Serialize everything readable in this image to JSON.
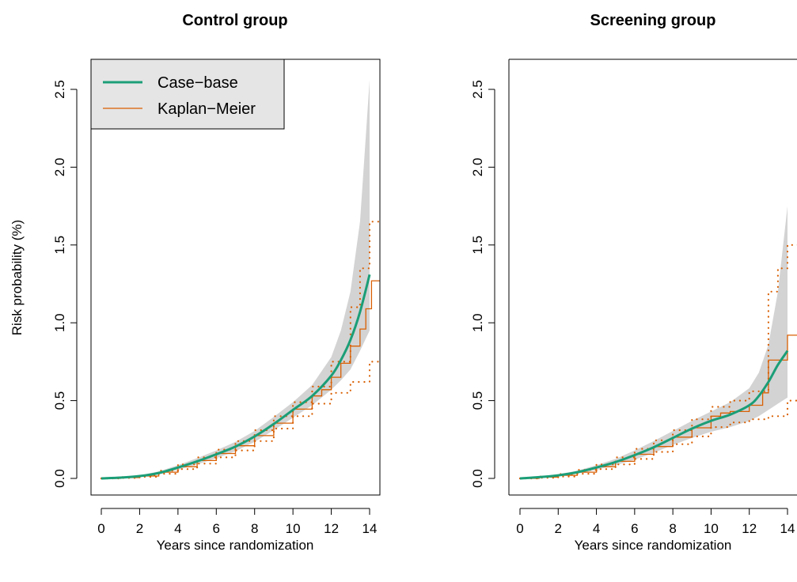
{
  "colors": {
    "case_base": "#1b9e77",
    "kaplan_meier": "#d95f02",
    "band": "#d3d3d3",
    "legend_bg": "#e5e5e5"
  },
  "chart_data": [
    {
      "type": "line",
      "title": "Control group",
      "xlabel": "Years since randomization",
      "ylabel": "Risk probability (%)",
      "xlim": [
        0,
        14
      ],
      "ylim": [
        0,
        2.5
      ],
      "x_ticks": [
        "0",
        "2",
        "4",
        "6",
        "8",
        "10",
        "12",
        "14"
      ],
      "y_ticks": [
        "0.0",
        "0.5",
        "1.0",
        "1.5",
        "2.0",
        "2.5"
      ],
      "legend": {
        "placement": "top-left",
        "entries": [
          {
            "label": "Case−base",
            "series": "case_base"
          },
          {
            "label": "Kaplan−Meier",
            "series": "kaplan_meier"
          }
        ]
      },
      "series": {
        "case_base": {
          "name": "Case−base",
          "x": [
            0,
            1,
            2,
            3,
            4,
            5,
            6,
            7,
            8,
            9,
            10,
            11,
            12,
            12.5,
            13,
            13.5,
            14
          ],
          "y": [
            0,
            0.005,
            0.015,
            0.035,
            0.07,
            0.11,
            0.155,
            0.205,
            0.27,
            0.35,
            0.44,
            0.53,
            0.66,
            0.76,
            0.89,
            1.07,
            1.31
          ]
        },
        "ci_band": {
          "x": [
            0,
            1,
            2,
            3,
            4,
            5,
            6,
            7,
            8,
            9,
            10,
            11,
            12,
            12.5,
            13,
            13.5,
            14
          ],
          "lower": [
            0,
            0.003,
            0.01,
            0.025,
            0.055,
            0.09,
            0.13,
            0.175,
            0.235,
            0.31,
            0.39,
            0.47,
            0.57,
            0.63,
            0.7,
            0.82,
            0.95
          ],
          "upper": [
            0,
            0.008,
            0.02,
            0.045,
            0.085,
            0.13,
            0.18,
            0.235,
            0.305,
            0.395,
            0.49,
            0.6,
            0.78,
            0.95,
            1.2,
            1.65,
            2.56
          ]
        },
        "kaplan_meier": {
          "name": "Kaplan−Meier",
          "x": [
            0,
            1,
            2,
            3,
            4,
            5,
            6,
            7,
            8,
            9,
            10,
            11,
            11.5,
            12,
            12.5,
            13,
            13.5,
            13.8,
            14.1,
            14.6
          ],
          "y": [
            0,
            0.005,
            0.015,
            0.04,
            0.075,
            0.115,
            0.16,
            0.21,
            0.275,
            0.355,
            0.445,
            0.53,
            0.57,
            0.65,
            0.74,
            0.85,
            0.96,
            1.09,
            1.27,
            1.27
          ]
        },
        "km_lower": {
          "x": [
            0,
            1,
            2,
            3,
            4,
            5,
            6,
            7,
            8,
            9,
            10,
            11,
            12,
            13,
            14,
            14.6
          ],
          "y": [
            0,
            0.003,
            0.01,
            0.03,
            0.06,
            0.095,
            0.135,
            0.18,
            0.24,
            0.32,
            0.4,
            0.48,
            0.55,
            0.62,
            0.75,
            0.83
          ]
        },
        "km_upper": {
          "x": [
            0,
            1,
            2,
            3,
            4,
            5,
            6,
            7,
            8,
            9,
            10,
            11,
            12,
            13,
            13.5,
            14,
            14.6
          ],
          "y": [
            0,
            0.008,
            0.02,
            0.05,
            0.09,
            0.135,
            0.185,
            0.24,
            0.31,
            0.4,
            0.49,
            0.59,
            0.75,
            1.1,
            1.35,
            1.65,
            1.94
          ]
        }
      }
    },
    {
      "type": "line",
      "title": "Screening group",
      "xlabel": "Years since randomization",
      "ylabel": "",
      "xlim": [
        0,
        14
      ],
      "ylim": [
        0,
        2.5
      ],
      "x_ticks": [
        "0",
        "2",
        "4",
        "6",
        "8",
        "10",
        "12",
        "14"
      ],
      "y_ticks": [
        "0.0",
        "0.5",
        "1.0",
        "1.5",
        "2.0",
        "2.5"
      ],
      "series": {
        "case_base": {
          "name": "Case−base",
          "x": [
            0,
            1,
            2,
            3,
            4,
            5,
            6,
            7,
            8,
            9,
            10,
            11,
            12,
            12.5,
            13,
            13.5,
            14
          ],
          "y": [
            0,
            0.008,
            0.02,
            0.04,
            0.07,
            0.105,
            0.15,
            0.2,
            0.26,
            0.32,
            0.37,
            0.41,
            0.47,
            0.53,
            0.62,
            0.73,
            0.82
          ]
        },
        "ci_band": {
          "x": [
            0,
            1,
            2,
            3,
            4,
            5,
            6,
            7,
            8,
            9,
            10,
            11,
            12,
            12.5,
            13,
            13.5,
            14
          ],
          "lower": [
            0,
            0.005,
            0.013,
            0.03,
            0.055,
            0.085,
            0.12,
            0.165,
            0.215,
            0.26,
            0.3,
            0.33,
            0.37,
            0.4,
            0.44,
            0.48,
            0.52
          ],
          "upper": [
            0,
            0.011,
            0.027,
            0.05,
            0.085,
            0.125,
            0.18,
            0.24,
            0.305,
            0.37,
            0.43,
            0.49,
            0.58,
            0.68,
            0.86,
            1.2,
            1.75
          ]
        },
        "kaplan_meier": {
          "name": "Kaplan−Meier",
          "x": [
            0,
            1,
            2,
            3,
            4,
            5,
            6,
            7,
            8,
            9,
            10,
            10.5,
            11,
            12,
            12.7,
            13,
            13.5,
            14,
            14.6
          ],
          "y": [
            0,
            0.008,
            0.02,
            0.04,
            0.075,
            0.11,
            0.155,
            0.205,
            0.265,
            0.325,
            0.4,
            0.42,
            0.43,
            0.47,
            0.55,
            0.76,
            0.76,
            0.92,
            0.92
          ]
        },
        "km_lower": {
          "x": [
            0,
            1,
            2,
            3,
            4,
            5,
            6,
            7,
            8,
            9,
            10,
            11,
            12,
            13,
            14,
            14.6
          ],
          "y": [
            0,
            0.004,
            0.012,
            0.03,
            0.06,
            0.09,
            0.125,
            0.17,
            0.22,
            0.27,
            0.33,
            0.36,
            0.38,
            0.4,
            0.5,
            0.56
          ]
        },
        "km_upper": {
          "x": [
            0,
            1,
            2,
            3,
            4,
            5,
            6,
            7,
            8,
            9,
            10,
            11,
            12,
            13,
            13.5,
            14,
            14.6
          ],
          "y": [
            0,
            0.012,
            0.028,
            0.055,
            0.09,
            0.135,
            0.19,
            0.245,
            0.31,
            0.38,
            0.46,
            0.5,
            0.56,
            1.2,
            1.35,
            1.5,
            1.56
          ]
        }
      }
    }
  ]
}
